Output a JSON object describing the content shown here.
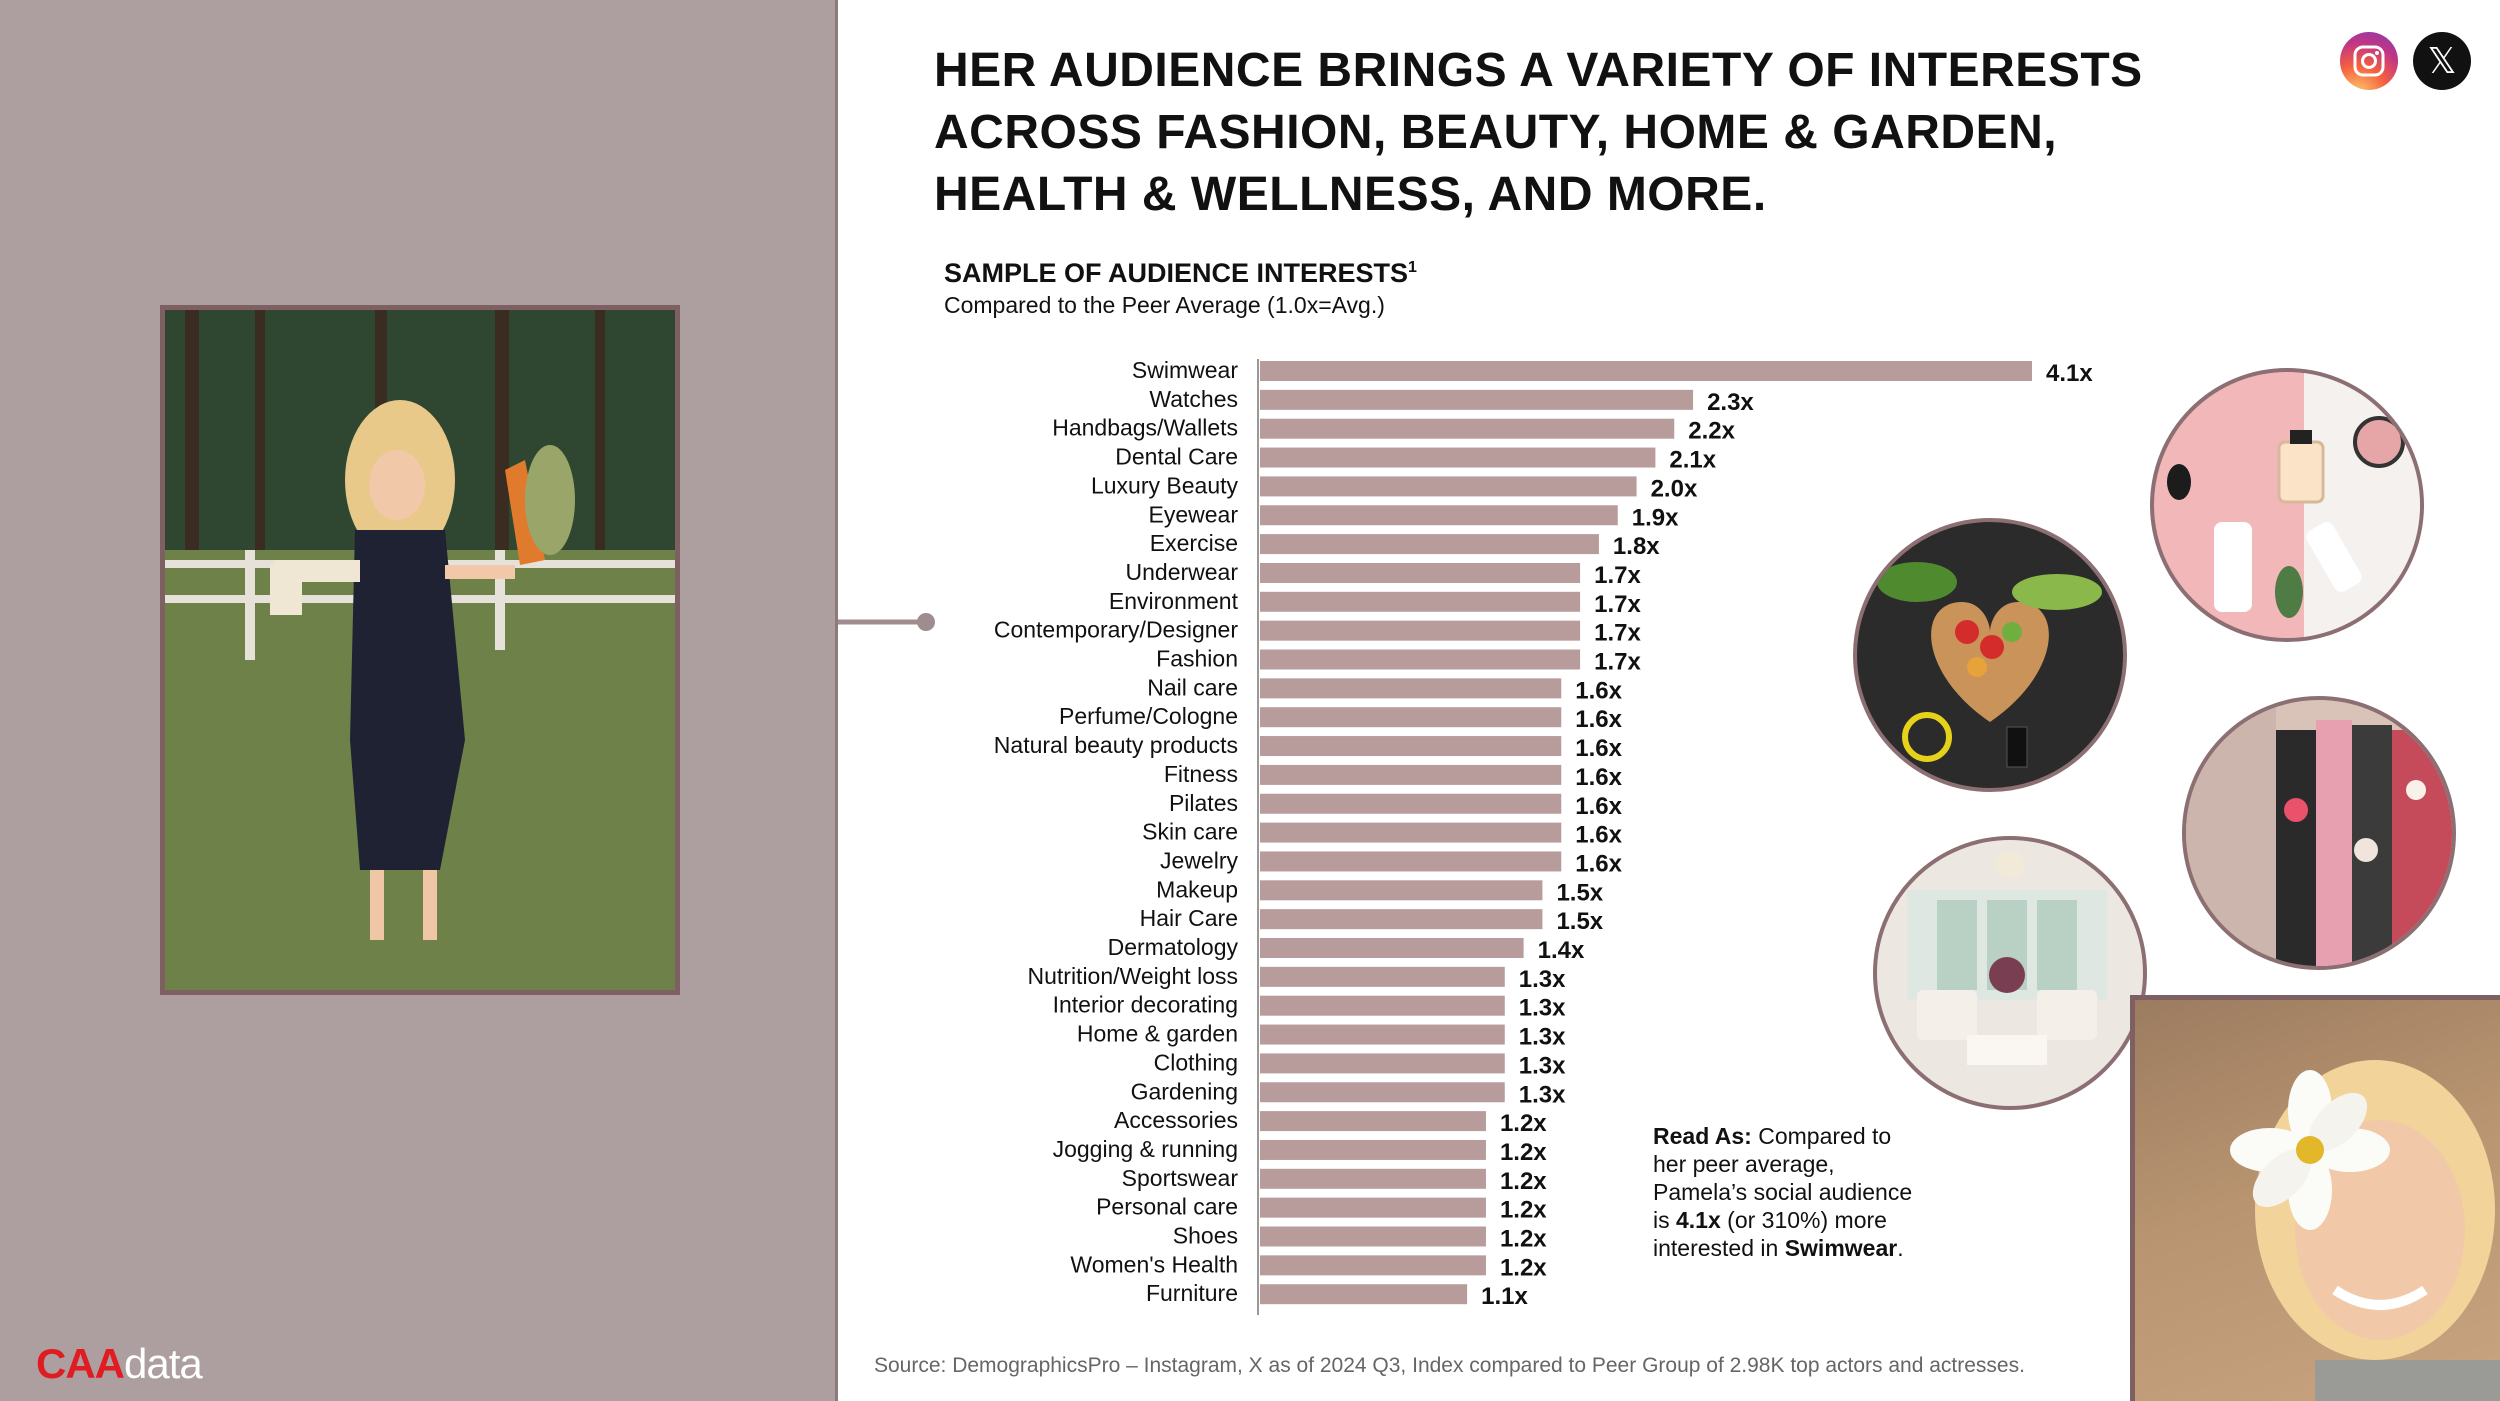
{
  "headline": "HER AUDIENCE BRINGS A VARIETY OF INTERESTS ACROSS FASHION, BEAUTY, HOME & GARDEN, HEALTH & WELLNESS, AND MORE.",
  "sample_title": "SAMPLE OF AUDIENCE INTERESTS",
  "sample_title_sup": "1",
  "sample_caption": "Compared to the Peer Average (1.0x=Avg.)",
  "read_as": {
    "label": "Read As:",
    "text_1": " Compared to her peer average, Pamela’s social audience is ",
    "value": "4.1x",
    "text_2": " (or 310%) more interested in ",
    "category": "Swimwear",
    "end": "."
  },
  "source": "Source: DemographicsPro – Instagram, X as of 2024 Q3, Index compared to Peer Group of 2.98K top actors and actresses.",
  "logo": {
    "part1": "CAA",
    "part2": "data"
  },
  "social": {
    "x_glyph": "𝕏"
  },
  "colors": {
    "bar": "#b89c9c",
    "left_panel": "#ad9ea0",
    "frame": "#7e5f62",
    "brand_red": "#e01b22"
  },
  "icons": [
    "instagram-icon",
    "x-icon"
  ],
  "chart_data": {
    "type": "bar",
    "orientation": "horizontal",
    "categories": [
      "Swimwear",
      "Watches",
      "Handbags/Wallets",
      "Dental Care",
      "Luxury Beauty",
      "Eyewear",
      "Exercise",
      "Underwear",
      "Environment",
      "Contemporary/Designer",
      "Fashion",
      "Nail care",
      "Perfume/Cologne",
      "Natural beauty products",
      "Fitness",
      "Pilates",
      "Skin care",
      "Jewelry",
      "Makeup",
      "Hair Care",
      "Dermatology",
      "Nutrition/Weight loss",
      "Interior decorating",
      "Home & garden",
      "Clothing",
      "Gardening",
      "Accessories",
      "Jogging & running",
      "Sportswear",
      "Personal care",
      "Shoes",
      "Women's Health",
      "Furniture"
    ],
    "values": [
      4.1,
      2.3,
      2.2,
      2.1,
      2.0,
      1.9,
      1.8,
      1.7,
      1.7,
      1.7,
      1.7,
      1.6,
      1.6,
      1.6,
      1.6,
      1.6,
      1.6,
      1.6,
      1.5,
      1.5,
      1.4,
      1.3,
      1.3,
      1.3,
      1.3,
      1.3,
      1.2,
      1.2,
      1.2,
      1.2,
      1.2,
      1.2,
      1.1
    ],
    "labels": [
      "4.1x",
      "2.3x",
      "2.2x",
      "2.1x",
      "2.0x",
      "1.9x",
      "1.8x",
      "1.7x",
      "1.7x",
      "1.7x",
      "1.7x",
      "1.6x",
      "1.6x",
      "1.6x",
      "1.6x",
      "1.6x",
      "1.6x",
      "1.6x",
      "1.5x",
      "1.5x",
      "1.4x",
      "1.3x",
      "1.3x",
      "1.3x",
      "1.3x",
      "1.3x",
      "1.2x",
      "1.2x",
      "1.2x",
      "1.2x",
      "1.2x",
      "1.2x",
      "1.1x"
    ],
    "xlim": [
      0,
      4.1
    ],
    "grid": false,
    "legend": "none"
  }
}
